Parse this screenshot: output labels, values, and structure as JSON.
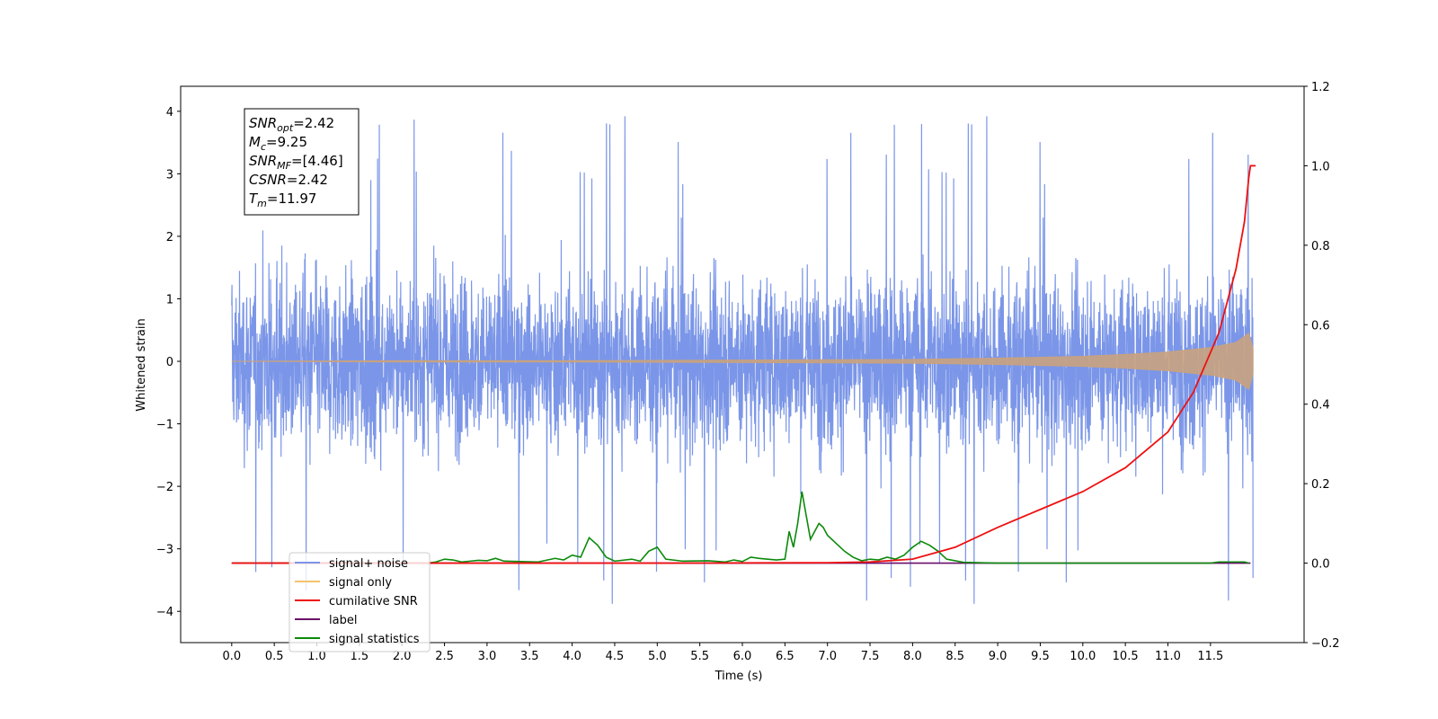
{
  "chart_data": {
    "type": "line",
    "xlabel": "Time (s)",
    "ylabel": "Whitened strain",
    "xlim": [
      -0.6,
      12.6
    ],
    "ylim": [
      -4.5,
      4.4
    ],
    "y2lim": [
      -0.2,
      1.2
    ],
    "x_ticks": [
      "0.0",
      "0.5",
      "1.0",
      "1.5",
      "2.0",
      "2.5",
      "3.0",
      "3.5",
      "4.0",
      "4.5",
      "5.0",
      "5.5",
      "6.0",
      "6.5",
      "7.0",
      "7.5",
      "8.0",
      "8.5",
      "9.0",
      "9.5",
      "10.0",
      "10.5",
      "11.0",
      "11.5"
    ],
    "y_ticks": [
      "4",
      "3",
      "2",
      "1",
      "0",
      "−1",
      "−2",
      "−3",
      "−4"
    ],
    "y2_ticks": [
      "1.2",
      "1.0",
      "0.8",
      "0.6",
      "0.4",
      "0.2",
      "0.0",
      "−0.2"
    ],
    "annotation": [
      {
        "base": "SNR",
        "sub": "opt",
        "value": "=2.42"
      },
      {
        "base": "M",
        "sub": "c",
        "value": "=9.25"
      },
      {
        "base": "SNR",
        "sub": "MF",
        "value": "=[4.46]"
      },
      {
        "base": "CSNR",
        "sub": "",
        "value": "=2.42"
      },
      {
        "base": "T",
        "sub": "m",
        "value": "=11.97"
      }
    ],
    "legend_position": "lower-left",
    "series": [
      {
        "name": "signal+ noise",
        "color": "#7b96e8",
        "axis": "left",
        "description_level": "noise amplitude ~ ±1.7 with spikes to ~±4"
      },
      {
        "name": "signal only",
        "color": "#f5c26b",
        "axis": "left",
        "points": [
          [
            0,
            0
          ],
          [
            2,
            0.01
          ],
          [
            4,
            0.01
          ],
          [
            6,
            0.02
          ],
          [
            8,
            0.03
          ],
          [
            9,
            0.05
          ],
          [
            10,
            0.08
          ],
          [
            10.5,
            0.11
          ],
          [
            11,
            0.15
          ],
          [
            11.5,
            0.22
          ],
          [
            11.8,
            0.3
          ],
          [
            11.95,
            0.45
          ],
          [
            12.0,
            0.2
          ]
        ]
      },
      {
        "name": "cumilative SNR",
        "color": "#ee1111",
        "axis": "right",
        "points": [
          [
            0,
            0
          ],
          [
            5,
            0
          ],
          [
            7,
            0.001
          ],
          [
            7.5,
            0.003
          ],
          [
            8,
            0.01
          ],
          [
            8.5,
            0.04
          ],
          [
            9,
            0.09
          ],
          [
            9.5,
            0.135
          ],
          [
            10,
            0.18
          ],
          [
            10.5,
            0.24
          ],
          [
            11,
            0.33
          ],
          [
            11.3,
            0.43
          ],
          [
            11.6,
            0.58
          ],
          [
            11.8,
            0.74
          ],
          [
            11.9,
            0.86
          ],
          [
            11.95,
            0.97
          ],
          [
            11.97,
            1.0
          ],
          [
            12.03,
            1.0
          ]
        ]
      },
      {
        "name": "label",
        "color": "#6a0d6a",
        "axis": "right",
        "points": [
          [
            0,
            0
          ],
          [
            11.97,
            0
          ]
        ]
      },
      {
        "name": "signal statistics",
        "color": "#0b8a0b",
        "axis": "right",
        "points": [
          [
            0,
            0
          ],
          [
            2.3,
            0
          ],
          [
            2.4,
            0.003
          ],
          [
            2.5,
            0.01
          ],
          [
            2.6,
            0.008
          ],
          [
            2.7,
            0.003
          ],
          [
            2.8,
            0.005
          ],
          [
            2.9,
            0.007
          ],
          [
            3.0,
            0.006
          ],
          [
            3.1,
            0.012
          ],
          [
            3.2,
            0.005
          ],
          [
            3.4,
            0.004
          ],
          [
            3.6,
            0.003
          ],
          [
            3.8,
            0.012
          ],
          [
            3.9,
            0.008
          ],
          [
            4.0,
            0.02
          ],
          [
            4.1,
            0.015
          ],
          [
            4.2,
            0.064
          ],
          [
            4.3,
            0.045
          ],
          [
            4.4,
            0.015
          ],
          [
            4.5,
            0.005
          ],
          [
            4.7,
            0.01
          ],
          [
            4.8,
            0.005
          ],
          [
            4.9,
            0.03
          ],
          [
            5.0,
            0.04
          ],
          [
            5.1,
            0.01
          ],
          [
            5.3,
            0.005
          ],
          [
            5.6,
            0.006
          ],
          [
            5.8,
            0.003
          ],
          [
            5.9,
            0.008
          ],
          [
            6.0,
            0.004
          ],
          [
            6.1,
            0.015
          ],
          [
            6.2,
            0.012
          ],
          [
            6.3,
            0.01
          ],
          [
            6.4,
            0.008
          ],
          [
            6.5,
            0.01
          ],
          [
            6.55,
            0.08
          ],
          [
            6.6,
            0.04
          ],
          [
            6.65,
            0.1
          ],
          [
            6.7,
            0.18
          ],
          [
            6.75,
            0.12
          ],
          [
            6.8,
            0.06
          ],
          [
            6.85,
            0.08
          ],
          [
            6.9,
            0.1
          ],
          [
            6.95,
            0.09
          ],
          [
            7.0,
            0.07
          ],
          [
            7.1,
            0.05
          ],
          [
            7.2,
            0.03
          ],
          [
            7.3,
            0.015
          ],
          [
            7.4,
            0.006
          ],
          [
            7.5,
            0.01
          ],
          [
            7.6,
            0.008
          ],
          [
            7.7,
            0.015
          ],
          [
            7.8,
            0.01
          ],
          [
            7.9,
            0.02
          ],
          [
            8.0,
            0.04
          ],
          [
            8.1,
            0.055
          ],
          [
            8.2,
            0.045
          ],
          [
            8.3,
            0.03
          ],
          [
            8.4,
            0.01
          ],
          [
            8.6,
            0.002
          ],
          [
            9.0,
            0
          ],
          [
            11.5,
            0
          ],
          [
            11.6,
            0.003
          ],
          [
            11.9,
            0.003
          ],
          [
            11.95,
            0
          ]
        ]
      }
    ]
  }
}
